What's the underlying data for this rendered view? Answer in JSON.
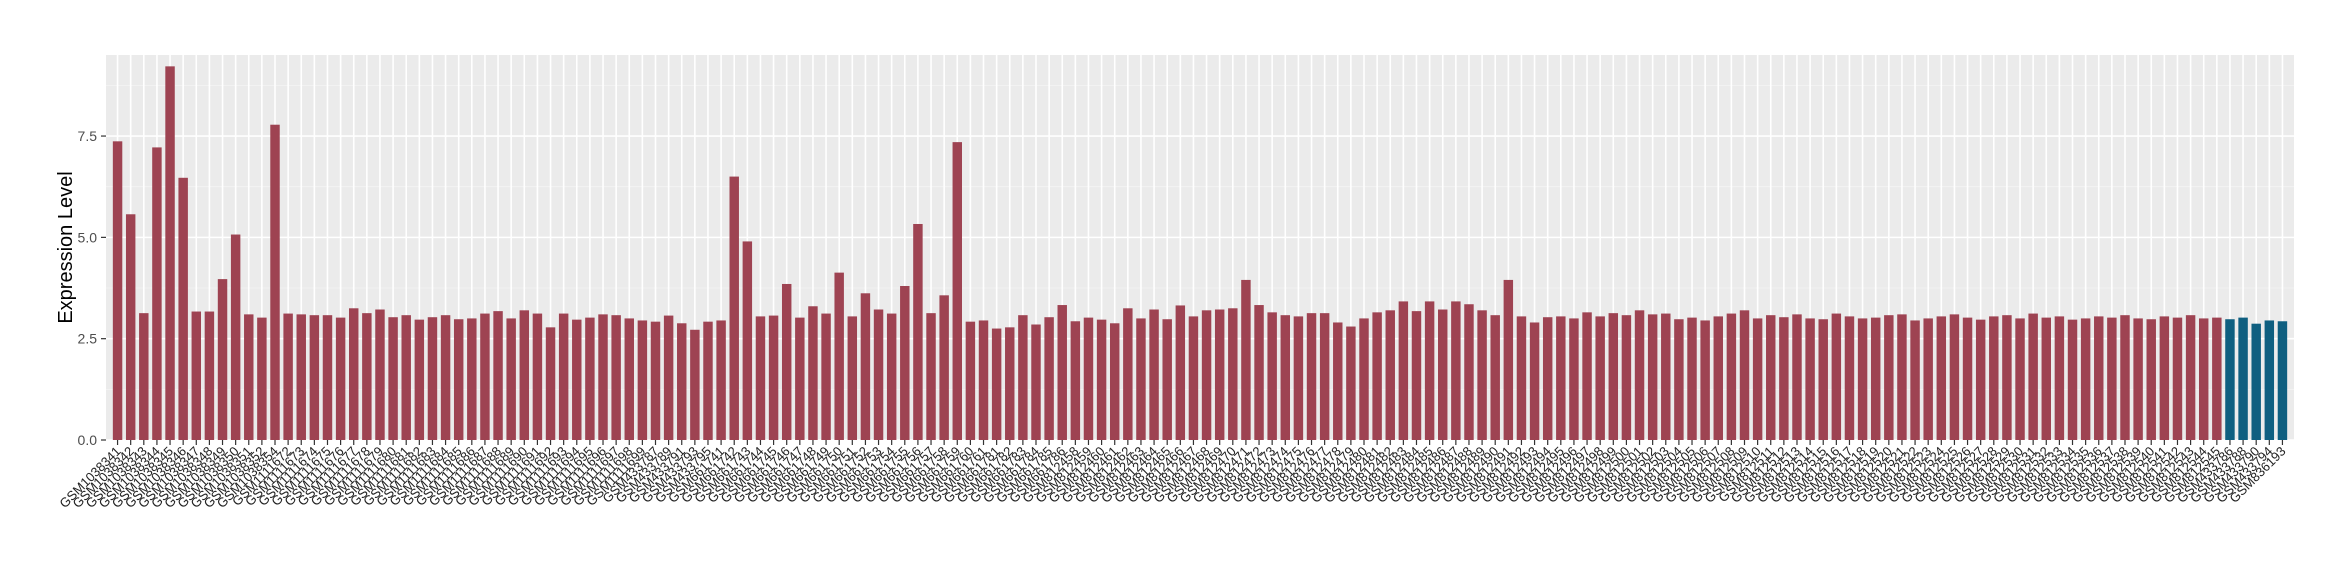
{
  "chart_data": {
    "type": "bar",
    "title": "",
    "xlabel": "",
    "ylabel": "Expression Level",
    "ylim": [
      0,
      9.5
    ],
    "yticks": [
      0.0,
      2.5,
      5.0,
      7.5
    ],
    "ytick_labels": [
      "0.0",
      "2.5",
      "5.0",
      "7.5"
    ],
    "grid": true,
    "legend": "none",
    "colors": {
      "group_a": "#9e4352",
      "group_b": "#0f5f80",
      "panel": "#ebebeb",
      "gridline": "#ffffff"
    },
    "series": [
      {
        "color_key": "group_a",
        "start": 0,
        "end": 160
      },
      {
        "color_key": "group_b",
        "start": 161,
        "end": 165
      }
    ],
    "categories": [
      "GSM1038341",
      "GSM1038342",
      "GSM1038343",
      "GSM1038344",
      "GSM1038345",
      "GSM1038346",
      "GSM1038347",
      "GSM1038348",
      "GSM1038349",
      "GSM1038350",
      "GSM1038351",
      "GSM1038352",
      "GSM1038354",
      "GSM1111672",
      "GSM1111673",
      "GSM1111674",
      "GSM1111675",
      "GSM1111676",
      "GSM1111677",
      "GSM1111678",
      "GSM1111679",
      "GSM1111680",
      "GSM1111681",
      "GSM1111682",
      "GSM1111683",
      "GSM1111684",
      "GSM1111685",
      "GSM1111686",
      "GSM1111687",
      "GSM1111688",
      "GSM1111689",
      "GSM1111690",
      "GSM1111691",
      "GSM1111692",
      "GSM1111693",
      "GSM1111694",
      "GSM1111695",
      "GSM1111696",
      "GSM1111697",
      "GSM1111698",
      "GSM1111699",
      "GSM433787",
      "GSM433789",
      "GSM433791",
      "GSM433793",
      "GSM433795",
      "GSM661741",
      "GSM661742",
      "GSM661743",
      "GSM661744",
      "GSM661745",
      "GSM661746",
      "GSM661747",
      "GSM661748",
      "GSM661749",
      "GSM661750",
      "GSM661751",
      "GSM661752",
      "GSM661753",
      "GSM661754",
      "GSM661755",
      "GSM661756",
      "GSM661757",
      "GSM661758",
      "GSM661759",
      "GSM661760",
      "GSM661761",
      "GSM661781",
      "GSM661782",
      "GSM661783",
      "GSM661784",
      "GSM661785",
      "GSM661786",
      "GSM812458",
      "GSM812459",
      "GSM812460",
      "GSM812461",
      "GSM812462",
      "GSM812463",
      "GSM812464",
      "GSM812465",
      "GSM812466",
      "GSM812467",
      "GSM812468",
      "GSM812469",
      "GSM812470",
      "GSM812471",
      "GSM812472",
      "GSM812473",
      "GSM812474",
      "GSM812475",
      "GSM812476",
      "GSM812477",
      "GSM812478",
      "GSM812479",
      "GSM812480",
      "GSM812481",
      "GSM812482",
      "GSM812483",
      "GSM812484",
      "GSM812485",
      "GSM812486",
      "GSM812487",
      "GSM812488",
      "GSM812489",
      "GSM812490",
      "GSM812491",
      "GSM812492",
      "GSM812493",
      "GSM812494",
      "GSM812495",
      "GSM812496",
      "GSM812497",
      "GSM812498",
      "GSM812499",
      "GSM812500",
      "GSM812501",
      "GSM812502",
      "GSM812503",
      "GSM812504",
      "GSM812505",
      "GSM812506",
      "GSM812507",
      "GSM812508",
      "GSM812509",
      "GSM812510",
      "GSM812511",
      "GSM812512",
      "GSM812513",
      "GSM812514",
      "GSM812515",
      "GSM812516",
      "GSM812517",
      "GSM812518",
      "GSM812519",
      "GSM812520",
      "GSM812521",
      "GSM812522",
      "GSM812523",
      "GSM812524",
      "GSM812525",
      "GSM812526",
      "GSM812527",
      "GSM812528",
      "GSM812529",
      "GSM812530",
      "GSM812531",
      "GSM812532",
      "GSM812533",
      "GSM812534",
      "GSM812535",
      "GSM812536",
      "GSM812537",
      "GSM812538",
      "GSM812539",
      "GSM812540",
      "GSM812541",
      "GSM812542",
      "GSM812543",
      "GSM812544",
      "GSM812545",
      "GSM433786",
      "GSM433788",
      "GSM433790",
      "GSM433794",
      "GSM836193"
    ],
    "values": [
      7.37,
      5.57,
      3.13,
      7.22,
      9.22,
      6.47,
      3.17,
      3.17,
      3.97,
      5.07,
      3.1,
      3.02,
      7.78,
      3.12,
      3.1,
      3.08,
      3.08,
      3.02,
      3.25,
      3.13,
      3.22,
      3.03,
      3.08,
      2.97,
      3.03,
      3.08,
      2.98,
      3.0,
      3.12,
      3.18,
      3.0,
      3.2,
      3.12,
      2.78,
      3.12,
      2.97,
      3.02,
      3.1,
      3.08,
      3.0,
      2.95,
      2.92,
      3.07,
      2.88,
      2.72,
      2.92,
      2.95,
      6.5,
      4.9,
      3.05,
      3.07,
      3.85,
      3.02,
      3.3,
      3.12,
      4.13,
      3.05,
      3.62,
      3.22,
      3.12,
      3.8,
      5.33,
      3.13,
      3.57,
      7.35,
      2.92,
      2.95,
      2.75,
      2.78,
      3.08,
      2.85,
      3.03,
      3.33,
      2.93,
      3.02,
      2.97,
      2.88,
      3.25,
      3.0,
      3.22,
      2.98,
      3.32,
      3.05,
      3.2,
      3.22,
      3.25,
      3.95,
      3.33,
      3.15,
      3.08,
      3.05,
      3.13,
      3.13,
      2.9,
      2.8,
      3.0,
      3.15,
      3.2,
      3.42,
      3.18,
      3.42,
      3.22,
      3.42,
      3.35,
      3.2,
      3.08,
      3.95,
      3.05,
      2.9,
      3.03,
      3.05,
      3.0,
      3.15,
      3.05,
      3.13,
      3.08,
      3.2,
      3.1,
      3.12,
      2.98,
      3.02,
      2.95,
      3.05,
      3.12,
      3.2,
      3.0,
      3.08,
      3.03,
      3.1,
      3.0,
      2.98,
      3.12,
      3.05,
      3.0,
      3.02,
      3.08,
      3.1,
      2.95,
      3.0,
      3.05,
      3.1,
      3.02,
      2.97,
      3.05,
      3.08,
      3.0,
      3.12,
      3.02,
      3.05,
      2.97,
      3.0,
      3.05,
      3.02,
      3.08,
      3.0,
      2.98,
      3.05,
      3.02,
      3.08,
      3.0,
      3.02,
      2.98,
      3.02,
      2.87,
      2.95,
      2.93
    ]
  }
}
